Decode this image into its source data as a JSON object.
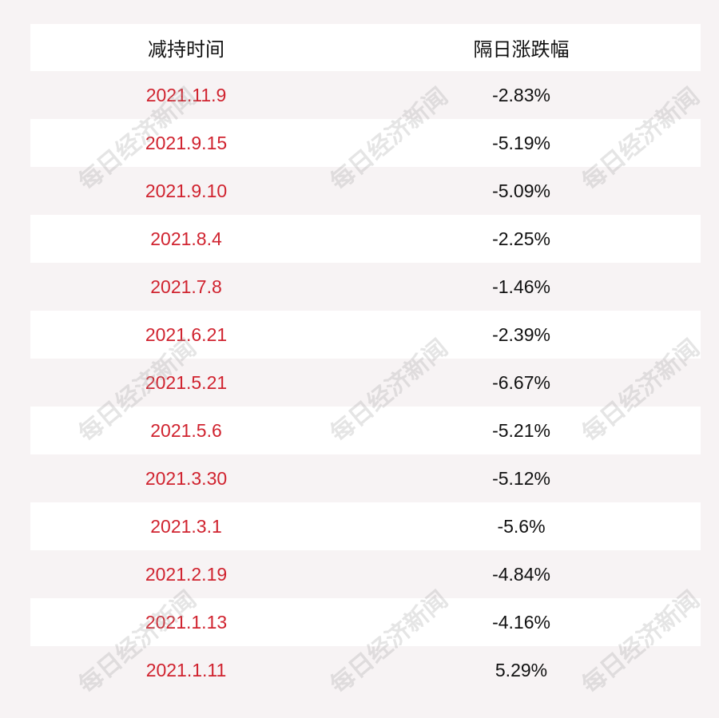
{
  "table": {
    "headers": [
      "减持时间",
      "隔日涨跌幅"
    ],
    "rows": [
      {
        "date": "2021.11.9",
        "change": "-2.83%"
      },
      {
        "date": "2021.9.15",
        "change": "-5.19%"
      },
      {
        "date": "2021.9.10",
        "change": "-5.09%"
      },
      {
        "date": "2021.8.4",
        "change": "-2.25%"
      },
      {
        "date": "2021.7.8",
        "change": "-1.46%"
      },
      {
        "date": "2021.6.21",
        "change": "-2.39%"
      },
      {
        "date": "2021.5.21",
        "change": "-6.67%"
      },
      {
        "date": "2021.5.6",
        "change": "-5.21%"
      },
      {
        "date": "2021.3.30",
        "change": "-5.12%"
      },
      {
        "date": "2021.3.1",
        "change": "-5.6%"
      },
      {
        "date": "2021.2.19",
        "change": "-4.84%"
      },
      {
        "date": "2021.1.13",
        "change": "-4.16%"
      },
      {
        "date": "2021.1.11",
        "change": "5.29%"
      }
    ]
  },
  "watermark": "每日经济新闻",
  "colors": {
    "date_text": "#d0232f",
    "value_text": "#111111",
    "stripe": "#f7f3f4"
  }
}
